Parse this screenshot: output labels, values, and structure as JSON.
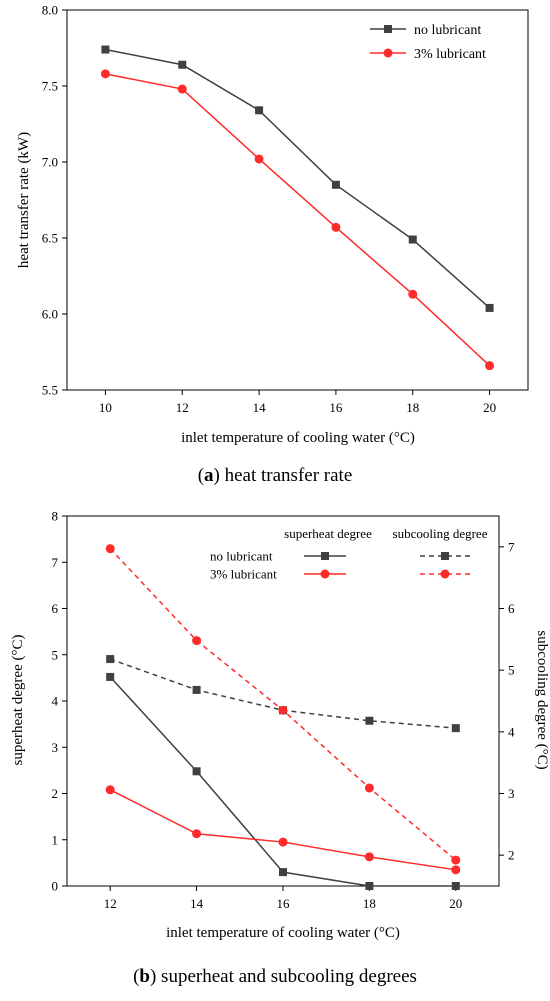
{
  "chart_data": [
    {
      "type": "line",
      "title": "",
      "caption_label": "a",
      "caption_text": "heat transfer rate",
      "xlabel": "inlet temperature of cooling water (°C)",
      "ylabel": "heat transfer rate (kW)",
      "x": [
        10,
        12,
        14,
        16,
        18,
        20
      ],
      "xlim": [
        9,
        21
      ],
      "ylim": [
        5.5,
        8.0
      ],
      "xticks": [
        "10",
        "12",
        "14",
        "16",
        "18",
        "20"
      ],
      "yticks": [
        "5.5",
        "6.0",
        "6.5",
        "7.0",
        "7.5",
        "8.0"
      ],
      "grid": false,
      "legend": "top-right",
      "series": [
        {
          "name": "no lubricant",
          "values": [
            7.74,
            7.64,
            7.34,
            6.85,
            6.49,
            6.04
          ],
          "color": "#404040",
          "marker": "square"
        },
        {
          "name": "3% lubricant",
          "values": [
            7.58,
            7.48,
            7.02,
            6.57,
            6.13,
            5.66
          ],
          "color": "#ff2a2a",
          "marker": "circle"
        }
      ]
    },
    {
      "type": "line",
      "title": "",
      "caption_label": "b",
      "caption_text": "superheat and subcooling degrees",
      "xlabel": "inlet temperature of cooling water (°C)",
      "ylabel": "superheat degree (°C)",
      "y2label": "subcooling degree (°C)",
      "x": [
        12,
        14,
        16,
        18,
        20
      ],
      "xlim": [
        11,
        21
      ],
      "ylim": [
        0,
        8
      ],
      "y2lim": [
        1.5,
        7.5
      ],
      "xticks": [
        "12",
        "14",
        "16",
        "18",
        "20"
      ],
      "yticks": [
        "0",
        "1",
        "2",
        "3",
        "4",
        "5",
        "6",
        "7",
        "8"
      ],
      "y2ticks": [
        "2",
        "3",
        "4",
        "5",
        "6",
        "7"
      ],
      "grid": false,
      "legend": "top-right",
      "legend_headers": [
        "superheat degree",
        "subcooling degree"
      ],
      "legend_rows": [
        "no lubricant",
        "3% lubricant"
      ],
      "series": [
        {
          "name": "no lubricant",
          "group": "superheat degree",
          "axis": "left",
          "values": [
            4.52,
            2.48,
            0.3,
            0.0,
            0.0
          ],
          "color": "#404040",
          "marker": "square",
          "dash": false
        },
        {
          "name": "3% lubricant",
          "group": "superheat degree",
          "axis": "left",
          "values": [
            2.08,
            1.13,
            0.95,
            0.63,
            0.35
          ],
          "color": "#ff2a2a",
          "marker": "circle",
          "dash": false
        },
        {
          "name": "no lubricant",
          "group": "subcooling degree",
          "axis": "right",
          "values": [
            5.18,
            4.68,
            4.35,
            4.18,
            4.06
          ],
          "color": "#404040",
          "marker": "square",
          "dash": true
        },
        {
          "name": "3% lubricant",
          "group": "subcooling degree",
          "axis": "right",
          "values": [
            6.97,
            5.48,
            4.35,
            3.09,
            1.92
          ],
          "color": "#ff2a2a",
          "marker": "circle",
          "dash": true
        }
      ]
    }
  ]
}
